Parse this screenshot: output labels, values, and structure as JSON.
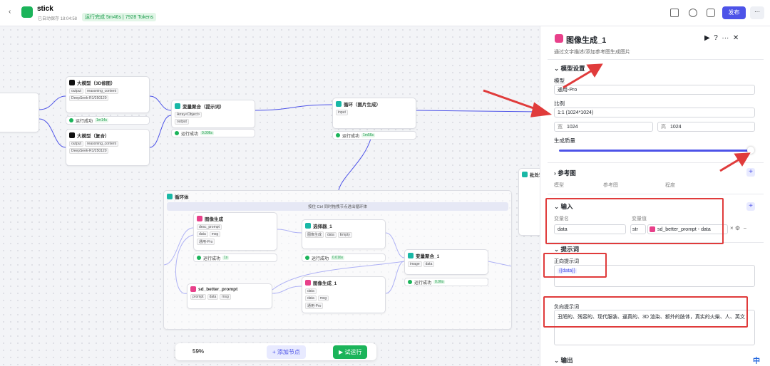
{
  "header": {
    "title": "stick",
    "autosave": "已自动保存 18:04:58",
    "run_status": "运行完成 5m46s",
    "tokens": "7928 Tokens",
    "publish": "发布"
  },
  "canvas": {
    "nodes": [
      {
        "title": "大模型（3D修图）",
        "rows": [
          "output",
          "reasoning_content",
          "DeepSeek-R1/250120"
        ],
        "status": "运行成功",
        "time": "1m14s"
      },
      {
        "title": "大模型（复合）",
        "rows": [
          "output",
          "reasoning_content",
          "DeepSeek-R1/250120"
        ]
      },
      {
        "title": "变量聚合（提示词）",
        "rows": [
          "Array<Object>",
          "output"
        ],
        "status": "运行成功",
        "time": "0.006s"
      },
      {
        "title": "循环（图片生成）",
        "rows": [
          "input"
        ],
        "status": "运行成功",
        "time": "1m56s"
      },
      {
        "title": "图像生成",
        "rows": [
          "desc_prompt",
          "data",
          "msg",
          "通用-Pro"
        ],
        "status": "运行成功",
        "time": "1s"
      },
      {
        "title": "选择器_1",
        "rows": [
          "图像生成",
          "data",
          "Empty"
        ],
        "status": "运行成功",
        "time": "0.016s"
      },
      {
        "title": "变量聚合_1",
        "rows": [
          "image",
          "data"
        ],
        "status": "运行成功",
        "time": "0.06s"
      },
      {
        "title": "sd_better_prompt",
        "rows": [
          "prompt",
          "data",
          "msg"
        ]
      },
      {
        "title": "图像生成_1",
        "rows": [
          "data",
          "data",
          "msg",
          "通用-Pro"
        ]
      },
      {
        "title": "批处理体"
      }
    ],
    "loop": {
      "title": "循环体",
      "hint": "按住 Ctrl 同时拖拽节点进出循环体"
    }
  },
  "toolbar": {
    "zoom": "59%",
    "add_node": "添加节点",
    "test_run": "试运行"
  },
  "panel": {
    "title": "图像生成_1",
    "description": "通过文字描述/添加参考图生成图片",
    "model_section": "模型设置",
    "model_label": "模型",
    "model_value": "通用-Pro",
    "ratio_label": "比例",
    "ratio_value": "1:1 (1024*1024)",
    "width_label": "宽",
    "width_value": "1024",
    "height_label": "高",
    "height_value": "1024",
    "quality_label": "生成质量",
    "ref_section": "参考图",
    "ref_cols": [
      "模型",
      "参考图",
      "程度"
    ],
    "input_section": "输入",
    "var_name": "变量名",
    "var_value": "变量值",
    "input_name": "data",
    "input_type": "str",
    "input_ref": "sd_better_prompt - data",
    "prompt_section": "提示词",
    "positive_label": "正向提示词",
    "positive_value": "{{data}}",
    "negative_label": "负向提示词",
    "negative_value": "丑陋的、残容的、现代服装、逼真的、3D 渲染、额外的肢体，真实的火柴、人、英文",
    "output_section": "输出",
    "ime": "中"
  }
}
